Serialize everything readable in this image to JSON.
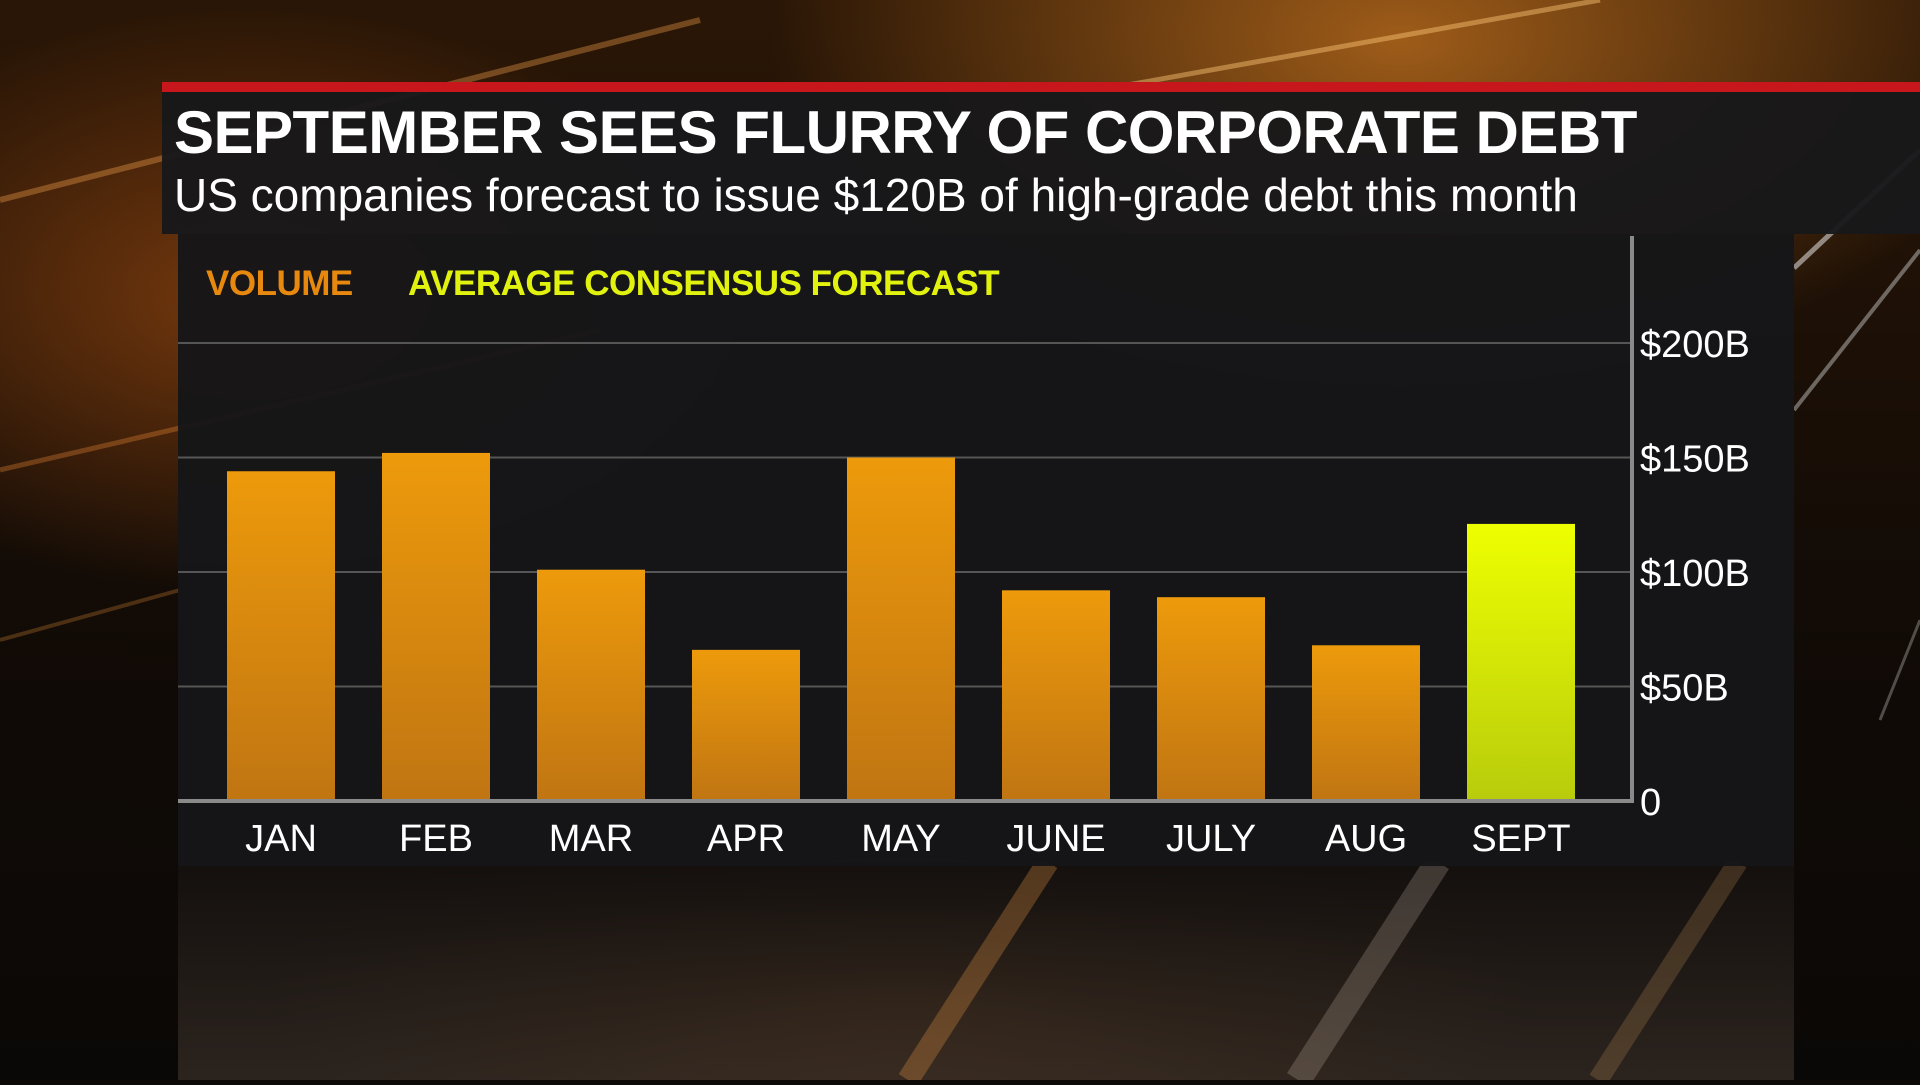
{
  "headline": "SEPTEMBER SEES FLURRY OF CORPORATE DEBT",
  "subhead": "US companies forecast to issue $120B of high-grade debt this month",
  "colors": {
    "accent_rule": "#c8161d",
    "volume": "#e8940a",
    "forecast": "#e6ff00",
    "legend_volume": "#e8890f",
    "legend_forecast": "#e2f20f"
  },
  "legend": {
    "volume": "VOLUME",
    "forecast": "AVERAGE CONSENSUS FORECAST"
  },
  "chart_data": {
    "type": "bar",
    "categories": [
      "JAN",
      "FEB",
      "MAR",
      "APR",
      "MAY",
      "JUNE",
      "JULY",
      "AUG",
      "SEPT"
    ],
    "series": [
      {
        "name": "VOLUME",
        "values": [
          144,
          152,
          101,
          66,
          150,
          92,
          89,
          68,
          null
        ]
      },
      {
        "name": "AVERAGE CONSENSUS FORECAST",
        "values": [
          null,
          null,
          null,
          null,
          null,
          null,
          null,
          null,
          121
        ]
      }
    ],
    "y_ticks": [
      {
        "value": 0,
        "label": "0"
      },
      {
        "value": 50,
        "label": "$50B"
      },
      {
        "value": 100,
        "label": "$100B"
      },
      {
        "value": 150,
        "label": "$150B"
      },
      {
        "value": 200,
        "label": "$200B"
      }
    ],
    "ylim": [
      0,
      200
    ],
    "y_axis_position": "right",
    "grid": true,
    "legend_position": "top-left"
  }
}
